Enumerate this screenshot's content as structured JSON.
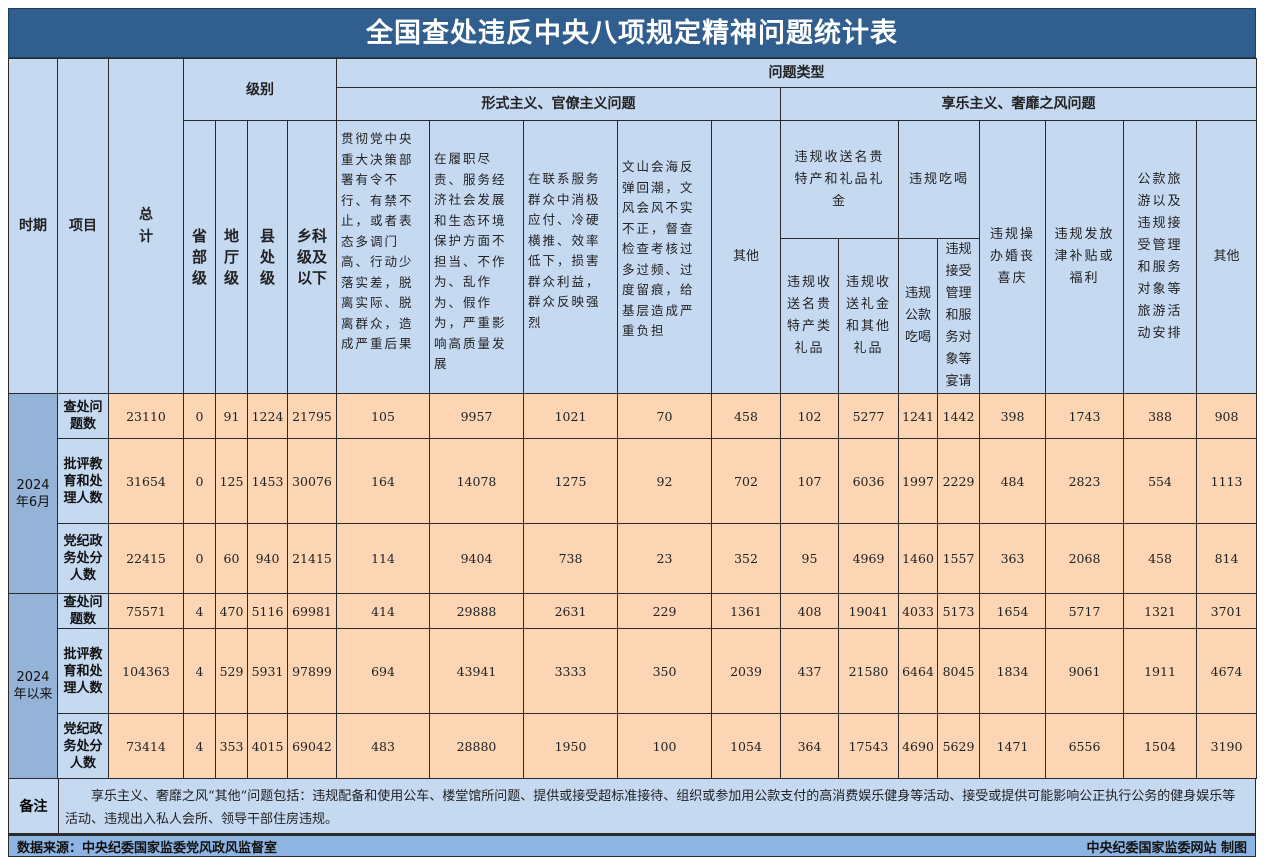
{
  "title": "全国查处违反中央八项规定精神问题统计表",
  "header": {
    "period": "时期",
    "item": "项目",
    "total": "总计",
    "level": "级别",
    "problem_type": "问题类型",
    "levels": [
      "省部级",
      "地厅级",
      "县处级",
      "乡科级及以下"
    ],
    "formalism": {
      "group": "形式主义、官僚主义问题",
      "cols": [
        "贯彻党中央重大决策部署有令不行、有禁不止，或者表态多调门高、行动少落实差，脱离实际、脱离群众，造成严重后果",
        "在履职尽责、服务经济社会发展和生态环境保护方面不担当、不作为、乱作为、假作为，严重影响高质量发展",
        "在联系服务群众中消极应付、冷硬横推、效率低下，损害群众利益，群众反映强烈",
        "文山会海反弹回潮，文风会风不实不正，督查检查考核过多过频、过度留痕，给基层造成严重负担",
        "其他"
      ]
    },
    "hedonism": {
      "group": "享乐主义、奢靡之风问题",
      "gift_group": "违规收送名贵特产和礼品礼金",
      "gift_cols": [
        "违规收送名贵特产类礼品",
        "违规收送礼金和其他礼品"
      ],
      "dining_group": "违规吃喝",
      "dining_cols": [
        "违规公款吃喝",
        "违规接受管理和服务对象等宴请"
      ],
      "cols": [
        "违规操办婚丧喜庆",
        "违规发放津补贴或福利",
        "公款旅游以及违规接受管理和服务对象等旅游活动安排",
        "其他"
      ]
    }
  },
  "periods": [
    {
      "label": "2024年6月",
      "rows": [
        {
          "item": "查处问题数",
          "values": [
            "23110",
            "0",
            "91",
            "1224",
            "21795",
            "105",
            "9957",
            "1021",
            "70",
            "458",
            "102",
            "5277",
            "1241",
            "1442",
            "398",
            "1743",
            "388",
            "908"
          ]
        },
        {
          "item": "批评教育和处理人数",
          "values": [
            "31654",
            "0",
            "125",
            "1453",
            "30076",
            "164",
            "14078",
            "1275",
            "92",
            "702",
            "107",
            "6036",
            "1997",
            "2229",
            "484",
            "2823",
            "554",
            "1113"
          ]
        },
        {
          "item": "党纪政务处分人数",
          "values": [
            "22415",
            "0",
            "60",
            "940",
            "21415",
            "114",
            "9404",
            "738",
            "23",
            "352",
            "95",
            "4969",
            "1460",
            "1557",
            "363",
            "2068",
            "458",
            "814"
          ]
        }
      ]
    },
    {
      "label": "2024年以来",
      "rows": [
        {
          "item": "查处问题数",
          "values": [
            "75571",
            "4",
            "470",
            "5116",
            "69981",
            "414",
            "29888",
            "2631",
            "229",
            "1361",
            "408",
            "19041",
            "4033",
            "5173",
            "1654",
            "5717",
            "1321",
            "3701"
          ]
        },
        {
          "item": "批评教育和处理人数",
          "values": [
            "104363",
            "4",
            "529",
            "5931",
            "97899",
            "694",
            "43941",
            "3333",
            "350",
            "2039",
            "437",
            "21580",
            "6464",
            "8045",
            "1834",
            "9061",
            "1911",
            "4674"
          ]
        },
        {
          "item": "党纪政务处分人数",
          "values": [
            "73414",
            "4",
            "353",
            "4015",
            "69042",
            "483",
            "28880",
            "1950",
            "100",
            "1054",
            "364",
            "17543",
            "4690",
            "5629",
            "1471",
            "6556",
            "1504",
            "3190"
          ]
        }
      ]
    }
  ],
  "notes": {
    "label": "备注",
    "text": "享乐主义、奢靡之风“其他”问题包括：违规配备和使用公车、楼堂馆所问题、提供或接受超标准接待、组织或参加用公款支付的高消费娱乐健身等活动、接受或提供可能影响公正执行公务的健身娱乐等活动、违规出入私人会所、领导干部住房违规。"
  },
  "footer": {
    "source": "数据来源：中央纪委国家监委党风政风监督室",
    "credit": "中央纪委国家监委网站 制图"
  },
  "colors": {
    "title_bg": "#2f5e8f",
    "header_bg": "#c5d9f1",
    "period_bg": "#95b3d7",
    "data_bg": "#fcd5b4",
    "footer_bg": "#8db4e2"
  }
}
